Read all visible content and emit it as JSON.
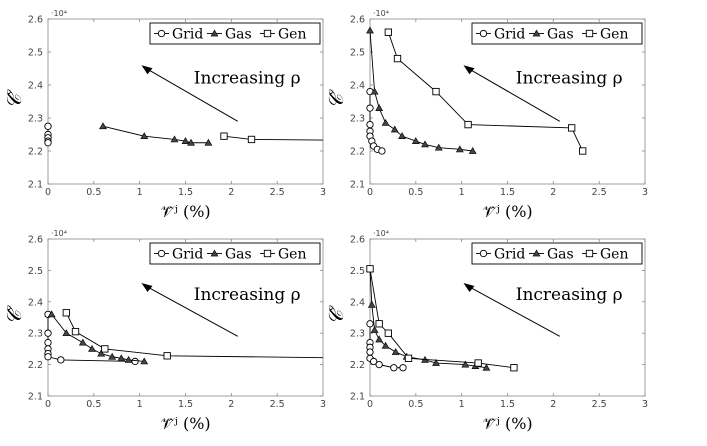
{
  "chart_data": [
    {
      "type": "line",
      "id": "top-left",
      "xlabel": "𝒱̂ʲ (%)",
      "ylabel": "𝒞̂",
      "exponent_label": "·10⁴",
      "annotation": "Increasing  ρ",
      "xlim": [
        0,
        3
      ],
      "ylim": [
        2.1,
        2.6
      ],
      "xticks": [
        "0",
        "0.5",
        "1",
        "1.5",
        "2",
        "2.5",
        "3"
      ],
      "yticks": [
        "2.1",
        "2.2",
        "2.3",
        "2.4",
        "2.5",
        "2.6"
      ],
      "legend": [
        "Grid",
        "Gas",
        "Gen"
      ],
      "series": [
        {
          "name": "Grid",
          "marker": "circle",
          "x": [
            0.0,
            0.0,
            0.0,
            0.0,
            0.0
          ],
          "y": [
            2.275,
            2.25,
            2.24,
            2.23,
            2.225
          ]
        },
        {
          "name": "Gas",
          "marker": "triangle",
          "x": [
            0.6,
            1.05,
            1.38,
            1.5,
            1.56,
            1.75
          ],
          "y": [
            2.275,
            2.245,
            2.235,
            2.23,
            2.225,
            2.225
          ]
        },
        {
          "name": "Gen",
          "marker": "square",
          "x": [
            1.92,
            2.22,
            3.0
          ],
          "y": [
            2.245,
            2.235,
            2.233
          ]
        }
      ]
    },
    {
      "type": "line",
      "id": "top-right",
      "xlabel": "𝒱̂ʲ (%)",
      "ylabel": "𝒞̂",
      "exponent_label": "·10⁴",
      "annotation": "Increasing  ρ",
      "xlim": [
        0,
        3
      ],
      "ylim": [
        2.1,
        2.6
      ],
      "xticks": [
        "0",
        "0.5",
        "1",
        "1.5",
        "2",
        "2.5",
        "3"
      ],
      "yticks": [
        "2.1",
        "2.2",
        "2.3",
        "2.4",
        "2.5",
        "2.6"
      ],
      "legend": [
        "Grid",
        "Gas",
        "Gen"
      ],
      "series": [
        {
          "name": "Grid",
          "marker": "circle",
          "x": [
            0.0,
            0.0,
            0.0,
            0.0,
            0.0,
            0.02,
            0.04,
            0.08,
            0.13
          ],
          "y": [
            2.38,
            2.33,
            2.28,
            2.26,
            2.245,
            2.23,
            2.215,
            2.205,
            2.2
          ]
        },
        {
          "name": "Gas",
          "marker": "triangle",
          "x": [
            0.0,
            0.05,
            0.1,
            0.17,
            0.27,
            0.35,
            0.5,
            0.6,
            0.75,
            0.98,
            1.12
          ],
          "y": [
            2.565,
            2.38,
            2.33,
            2.285,
            2.265,
            2.245,
            2.23,
            2.22,
            2.21,
            2.205,
            2.2
          ]
        },
        {
          "name": "Gen",
          "marker": "square",
          "x": [
            0.2,
            0.3,
            0.72,
            1.07,
            2.2,
            2.32
          ],
          "y": [
            2.56,
            2.48,
            2.38,
            2.28,
            2.27,
            2.2
          ]
        }
      ]
    },
    {
      "type": "line",
      "id": "bottom-left",
      "xlabel": "𝒱̂ʲ (%)",
      "ylabel": "𝒞̂",
      "exponent_label": "·10⁴",
      "annotation": "Increasing  ρ",
      "xlim": [
        0,
        3
      ],
      "ylim": [
        2.1,
        2.6
      ],
      "xticks": [
        "0",
        "0.5",
        "1",
        "1.5",
        "2",
        "2.5",
        "3"
      ],
      "yticks": [
        "2.1",
        "2.2",
        "2.3",
        "2.4",
        "2.5",
        "2.6"
      ],
      "legend": [
        "Grid",
        "Gas",
        "Gen"
      ],
      "series": [
        {
          "name": "Grid",
          "marker": "circle",
          "x": [
            0.0,
            0.0,
            0.0,
            0.0,
            0.0,
            0.0,
            0.14,
            0.95
          ],
          "y": [
            2.36,
            2.3,
            2.27,
            2.25,
            2.235,
            2.225,
            2.215,
            2.21
          ]
        },
        {
          "name": "Gas",
          "marker": "triangle",
          "x": [
            0.04,
            0.2,
            0.38,
            0.48,
            0.58,
            0.7,
            0.8,
            0.88,
            1.05
          ],
          "y": [
            2.36,
            2.3,
            2.27,
            2.25,
            2.235,
            2.225,
            2.22,
            2.215,
            2.21
          ]
        },
        {
          "name": "Gen",
          "marker": "square",
          "x": [
            0.2,
            0.3,
            0.62,
            1.3,
            3.0
          ],
          "y": [
            2.365,
            2.305,
            2.25,
            2.228,
            2.222
          ]
        }
      ]
    },
    {
      "type": "line",
      "id": "bottom-right",
      "xlabel": "𝒱̂ʲ (%)",
      "ylabel": "𝒞̂",
      "exponent_label": "·10⁴",
      "annotation": "Increasing  ρ",
      "xlim": [
        0,
        3
      ],
      "ylim": [
        2.1,
        2.6
      ],
      "xticks": [
        "0",
        "0.5",
        "1",
        "1.5",
        "2",
        "2.5",
        "3"
      ],
      "yticks": [
        "2.1",
        "2.2",
        "2.3",
        "2.4",
        "2.5",
        "2.6"
      ],
      "legend": [
        "Grid",
        "Gas",
        "Gen"
      ],
      "series": [
        {
          "name": "Grid",
          "marker": "circle",
          "x": [
            0.0,
            0.0,
            0.0,
            0.0,
            0.0,
            0.04,
            0.1,
            0.26,
            0.36
          ],
          "y": [
            2.33,
            2.27,
            2.255,
            2.24,
            2.22,
            2.21,
            2.2,
            2.19,
            2.19
          ]
        },
        {
          "name": "Gas",
          "marker": "triangle",
          "x": [
            0.0,
            0.02,
            0.05,
            0.1,
            0.17,
            0.28,
            0.4,
            0.6,
            0.72,
            1.04,
            1.15,
            1.27
          ],
          "y": [
            2.505,
            2.39,
            2.31,
            2.28,
            2.26,
            2.24,
            2.225,
            2.215,
            2.205,
            2.2,
            2.195,
            2.19
          ]
        },
        {
          "name": "Gen",
          "marker": "square",
          "x": [
            0.0,
            0.1,
            0.2,
            0.42,
            1.18,
            1.57
          ],
          "y": [
            2.505,
            2.33,
            2.3,
            2.22,
            2.205,
            2.19
          ]
        }
      ]
    }
  ]
}
